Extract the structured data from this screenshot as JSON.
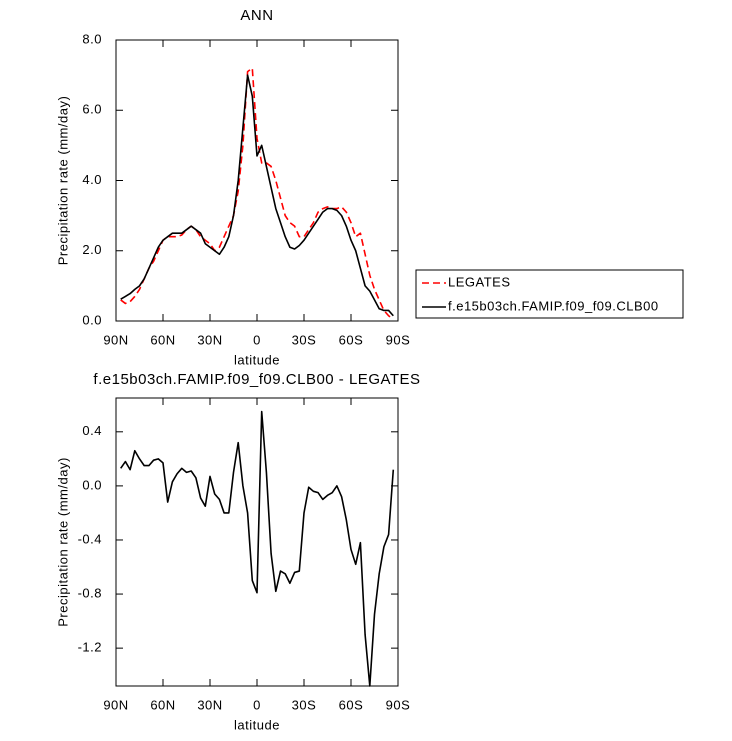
{
  "chart_data": [
    {
      "type": "line",
      "title": "ANN",
      "xlabel": "latitude",
      "ylabel": "Precipitation rate (mm/day)",
      "x": [
        87,
        84,
        81,
        78,
        75,
        72,
        69,
        66,
        63,
        60,
        57,
        54,
        51,
        48,
        45,
        42,
        39,
        36,
        33,
        30,
        27,
        24,
        21,
        18,
        15,
        12,
        9,
        6,
        3,
        0,
        -3,
        -6,
        -9,
        -12,
        -15,
        -18,
        -21,
        -24,
        -27,
        -30,
        -33,
        -36,
        -39,
        -42,
        -45,
        -48,
        -51,
        -54,
        -57,
        -60,
        -63,
        -66,
        -69,
        -72,
        -75,
        -78,
        -81,
        -84,
        -87
      ],
      "series": [
        {
          "name": "LEGATES",
          "color": "#ff0000",
          "dashed": true,
          "values": [
            0.6,
            0.5,
            0.55,
            0.7,
            0.9,
            1.2,
            1.5,
            1.7,
            2.0,
            2.3,
            2.4,
            2.4,
            2.4,
            2.45,
            2.6,
            2.7,
            2.6,
            2.4,
            2.3,
            2.2,
            2.0,
            2.1,
            2.4,
            2.7,
            3.0,
            3.7,
            5.0,
            7.1,
            7.2,
            5.2,
            4.5,
            4.5,
            4.4,
            4.0,
            3.5,
            3.0,
            2.8,
            2.7,
            2.4,
            2.4,
            2.6,
            2.8,
            3.1,
            3.2,
            3.25,
            3.2,
            3.2,
            3.25,
            3.1,
            2.8,
            2.4,
            2.5,
            1.9,
            1.3,
            0.9,
            0.6,
            0.3,
            0.15,
            0.05
          ]
        },
        {
          "name": "f.e15b03ch.FAMIP.f09_f09.CLB00",
          "color": "#000000",
          "dashed": false,
          "values": [
            0.62,
            0.7,
            0.78,
            0.9,
            1.0,
            1.2,
            1.5,
            1.8,
            2.1,
            2.3,
            2.4,
            2.5,
            2.5,
            2.5,
            2.6,
            2.7,
            2.6,
            2.5,
            2.2,
            2.1,
            2.0,
            1.9,
            2.1,
            2.4,
            3.0,
            4.0,
            5.5,
            7.0,
            6.4,
            4.7,
            5.0,
            4.4,
            3.8,
            3.2,
            2.8,
            2.4,
            2.1,
            2.05,
            2.15,
            2.3,
            2.5,
            2.7,
            2.9,
            3.1,
            3.2,
            3.2,
            3.15,
            3.0,
            2.7,
            2.3,
            2.0,
            1.5,
            1.0,
            0.85,
            0.6,
            0.35,
            0.3,
            0.3,
            0.15
          ]
        }
      ],
      "xlim": [
        90,
        -90
      ],
      "xticks": [
        {
          "value": 90,
          "label": "90N"
        },
        {
          "value": 60,
          "label": "60N"
        },
        {
          "value": 30,
          "label": "30N"
        },
        0,
        {
          "value": -30,
          "label": "30S"
        },
        {
          "value": -60,
          "label": "60S"
        },
        {
          "value": -90,
          "label": "90S"
        }
      ],
      "ylim": [
        0,
        8
      ],
      "yticks": [
        {
          "value": 0,
          "label": "0.0"
        },
        {
          "value": 2,
          "label": "2.0"
        },
        {
          "value": 4,
          "label": "4.0"
        },
        {
          "value": 6,
          "label": "6.0"
        },
        {
          "value": 8,
          "label": "8.0"
        }
      ],
      "legend": "right",
      "grid": false
    },
    {
      "type": "line",
      "title": "f.e15b03ch.FAMIP.f09_f09.CLB00 - LEGATES",
      "xlabel": "latitude",
      "ylabel": "Precipitation rate (mm/day)",
      "x": [
        87,
        84,
        81,
        78,
        75,
        72,
        69,
        66,
        63,
        60,
        57,
        54,
        51,
        48,
        45,
        42,
        39,
        36,
        33,
        30,
        27,
        24,
        21,
        18,
        15,
        12,
        9,
        6,
        3,
        0,
        -3,
        -6,
        -9,
        -12,
        -15,
        -18,
        -21,
        -24,
        -27,
        -30,
        -33,
        -36,
        -39,
        -42,
        -45,
        -48,
        -51,
        -54,
        -57,
        -60,
        -63,
        -66,
        -69,
        -72,
        -75,
        -78,
        -81,
        -84,
        -87
      ],
      "values": [
        0.13,
        0.18,
        0.12,
        0.26,
        0.2,
        0.15,
        0.15,
        0.19,
        0.2,
        0.17,
        -0.12,
        0.03,
        0.09,
        0.13,
        0.1,
        0.11,
        0.06,
        -0.09,
        -0.15,
        0.07,
        -0.06,
        -0.1,
        -0.2,
        -0.2,
        0.1,
        0.32,
        0.0,
        -0.2,
        -0.7,
        -0.79,
        0.55,
        0.1,
        -0.5,
        -0.78,
        -0.63,
        -0.65,
        -0.72,
        -0.64,
        -0.63,
        -0.2,
        -0.01,
        -0.04,
        -0.05,
        -0.1,
        -0.07,
        -0.05,
        0.0,
        -0.08,
        -0.25,
        -0.47,
        -0.58,
        -0.42,
        -1.1,
        -1.48,
        -0.95,
        -0.65,
        -0.45,
        -0.36,
        0.12
      ],
      "color": "#000000",
      "xlim": [
        90,
        -90
      ],
      "xticks": [
        {
          "value": 90,
          "label": "90N"
        },
        {
          "value": 60,
          "label": "60N"
        },
        {
          "value": 30,
          "label": "30N"
        },
        0,
        {
          "value": -30,
          "label": "30S"
        },
        {
          "value": -60,
          "label": "60S"
        },
        {
          "value": -90,
          "label": "90S"
        }
      ],
      "ylim": [
        -1.48,
        0.65
      ],
      "yticks": [
        0.4,
        {
          "value": 0,
          "label": "0.0"
        },
        -0.4,
        -0.8,
        -1.2
      ],
      "grid": false
    }
  ]
}
